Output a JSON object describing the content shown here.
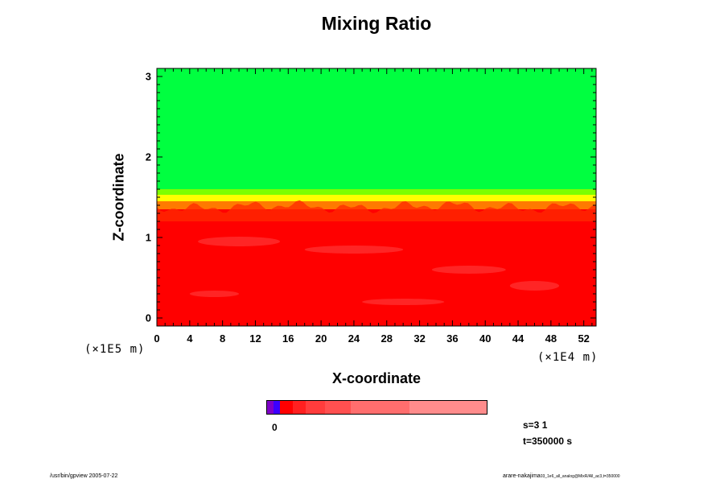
{
  "chart_data": {
    "type": "heatmap",
    "title": "Mixing Ratio",
    "xlabel": "X-coordinate",
    "ylabel": "Z-coordinate",
    "x_unit": "(×1E4 m)",
    "y_unit": "(×1E5 m)",
    "xlim": [
      0,
      53.5
    ],
    "ylim": [
      -0.1,
      3.1
    ],
    "x_ticks": [
      "0",
      "4",
      "8",
      "12",
      "16",
      "20",
      "24",
      "28",
      "32",
      "36",
      "40",
      "44",
      "48",
      "52"
    ],
    "y_ticks": [
      "0",
      "1",
      "2",
      "3"
    ],
    "layers": [
      {
        "z_from": -0.1,
        "z_to": 1.35,
        "color": "#ff0000"
      },
      {
        "z_from": 1.35,
        "z_to": 1.45,
        "color": "#ff7a00"
      },
      {
        "z_from": 1.45,
        "z_to": 1.53,
        "color": "#ffff00"
      },
      {
        "z_from": 1.53,
        "z_to": 1.6,
        "color": "#7dff00"
      },
      {
        "z_from": 1.6,
        "z_to": 3.1,
        "color": "#00ff40"
      }
    ],
    "colorbar": {
      "label_zero": "0",
      "segments": [
        {
          "color": "#7f00c8",
          "width": 1
        },
        {
          "color": "#3b00ff",
          "width": 1
        },
        {
          "color": "#ff0000",
          "width": 2
        },
        {
          "color": "#ff2020",
          "width": 2
        },
        {
          "color": "#ff3c3c",
          "width": 3
        },
        {
          "color": "#ff5050",
          "width": 4
        },
        {
          "color": "#ff6e6e",
          "width": 9
        },
        {
          "color": "#ff8c8c",
          "width": 12
        }
      ]
    },
    "grid": false,
    "legend": "none"
  },
  "info": {
    "step": "s=3 1",
    "time": "t=350000 s"
  },
  "footer": {
    "left": "/usr/bin/gpview 2005-07-22",
    "right": "arare-nakajima",
    "right_small": "03_1e6_all_analog@MixR/All_ac3,t=350000"
  }
}
